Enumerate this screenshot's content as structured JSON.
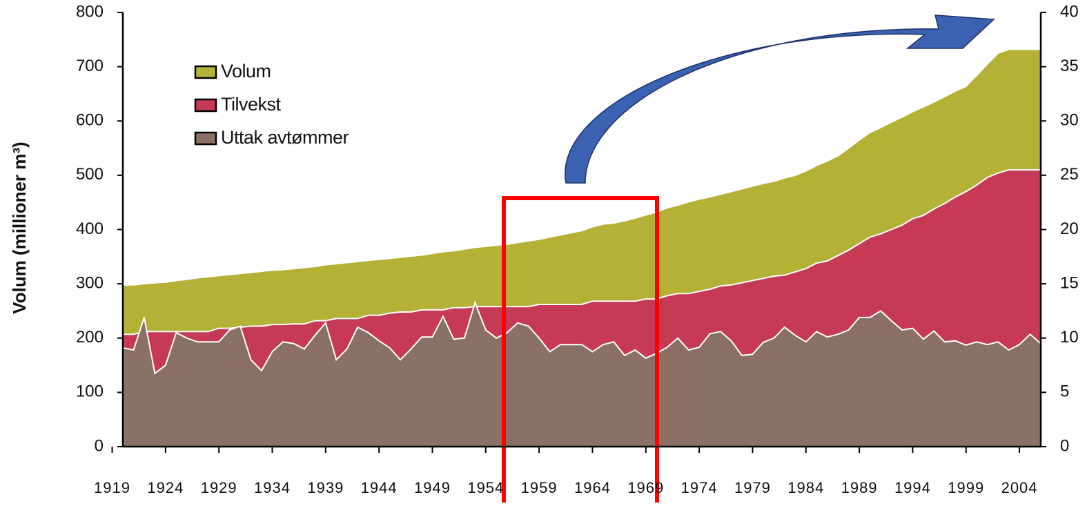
{
  "chart_data": {
    "type": "area",
    "y_label": "Volum (millioner m³)",
    "x": [
      1920,
      1921,
      1922,
      1923,
      1924,
      1925,
      1926,
      1927,
      1928,
      1929,
      1930,
      1931,
      1932,
      1933,
      1934,
      1935,
      1936,
      1937,
      1938,
      1939,
      1940,
      1941,
      1942,
      1943,
      1944,
      1945,
      1946,
      1947,
      1948,
      1949,
      1950,
      1951,
      1952,
      1953,
      1954,
      1955,
      1956,
      1957,
      1958,
      1959,
      1960,
      1961,
      1962,
      1963,
      1964,
      1965,
      1966,
      1967,
      1968,
      1969,
      1970,
      1971,
      1972,
      1973,
      1974,
      1975,
      1976,
      1977,
      1978,
      1979,
      1980,
      1981,
      1982,
      1983,
      1984,
      1985,
      1986,
      1987,
      1988,
      1989,
      1990,
      1991,
      1992,
      1993,
      1994,
      1995,
      1996,
      1997,
      1998,
      1999,
      2000,
      2001,
      2002,
      2003,
      2004,
      2005,
      2006
    ],
    "series": [
      {
        "name": "Volum",
        "color": "#b5b036",
        "values": [
          298,
          298,
          300,
          302,
          303,
          306,
          308,
          311,
          313,
          315,
          317,
          319,
          321,
          323,
          325,
          326,
          328,
          330,
          332,
          335,
          337,
          339,
          341,
          343,
          345,
          347,
          349,
          351,
          353,
          356,
          359,
          361,
          364,
          367,
          369,
          371,
          373,
          376,
          379,
          382,
          386,
          390,
          394,
          398,
          405,
          410,
          412,
          416,
          421,
          427,
          432,
          440,
          445,
          451,
          456,
          460,
          465,
          470,
          475,
          480,
          485,
          489,
          495,
          500,
          508,
          518,
          526,
          536,
          550,
          565,
          579,
          588,
          598,
          607,
          617,
          626,
          635,
          645,
          655,
          664,
          684,
          705,
          725,
          732,
          732,
          732,
          732
        ]
      },
      {
        "name": "Tilvekst",
        "color": "#c63a56",
        "axis": "y2",
        "values": [
          10.35,
          10.35,
          10.6,
          10.6,
          10.6,
          10.6,
          10.6,
          10.6,
          10.6,
          10.9,
          10.9,
          11.0,
          11.1,
          11.1,
          11.25,
          11.25,
          11.3,
          11.3,
          11.6,
          11.6,
          11.8,
          11.8,
          11.8,
          12.1,
          12.1,
          12.3,
          12.4,
          12.4,
          12.6,
          12.6,
          12.6,
          12.8,
          12.8,
          12.9,
          12.9,
          12.9,
          12.9,
          12.9,
          12.9,
          13.1,
          13.1,
          13.1,
          13.1,
          13.1,
          13.4,
          13.4,
          13.4,
          13.4,
          13.4,
          13.6,
          13.6,
          13.9,
          14.1,
          14.1,
          14.3,
          14.5,
          14.8,
          14.9,
          15.1,
          15.3,
          15.5,
          15.7,
          15.8,
          16.1,
          16.4,
          16.9,
          17.1,
          17.6,
          18.1,
          18.7,
          19.3,
          19.6,
          20.0,
          20.4,
          21.0,
          21.3,
          21.9,
          22.4,
          23.0,
          23.5,
          24.1,
          24.8,
          25.2,
          25.5,
          25.5,
          25.5,
          25.5
        ]
      },
      {
        "name": "Uttak avtømmer",
        "color": "#8b7165",
        "axis": "y2",
        "values": [
          9.1,
          8.9,
          11.9,
          6.75,
          7.5,
          10.5,
          10,
          9.65,
          9.65,
          9.65,
          10.75,
          11.1,
          8,
          7,
          8.75,
          9.65,
          9.5,
          9,
          10.25,
          11.4,
          8,
          9,
          11,
          10.5,
          9.75,
          9.1,
          8,
          9,
          10.1,
          10.1,
          12,
          9.9,
          10,
          13.25,
          10.75,
          10,
          10.5,
          11.4,
          11.1,
          10,
          8.75,
          9.4,
          9.4,
          9.4,
          8.75,
          9.4,
          9.65,
          8.4,
          8.9,
          8.15,
          8.6,
          9.15,
          10,
          8.9,
          9.15,
          10.4,
          10.6,
          9.75,
          8.4,
          8.5,
          9.6,
          10,
          11,
          10.25,
          9.65,
          10.6,
          10.1,
          10.35,
          10.75,
          11.9,
          11.9,
          12.5,
          11.6,
          10.75,
          10.9,
          9.9,
          10.65,
          9.65,
          9.75,
          9.35,
          9.65,
          9.4,
          9.65,
          8.9,
          9.4,
          10.35,
          9.5
        ]
      }
    ],
    "xlim": [
      1920,
      2006
    ],
    "xticks": [
      1919,
      1924,
      1929,
      1934,
      1939,
      1944,
      1949,
      1954,
      1959,
      1964,
      1969,
      1974,
      1979,
      1984,
      1989,
      1994,
      1999,
      2004
    ],
    "ylim": [
      0,
      800
    ],
    "yticks": [
      0,
      100,
      200,
      300,
      400,
      500,
      600,
      700,
      800
    ],
    "y2lim": [
      0,
      40
    ],
    "y2ticks": [
      0,
      5,
      10,
      15,
      20,
      25,
      30,
      35,
      40
    ],
    "legend": "upper left"
  }
}
